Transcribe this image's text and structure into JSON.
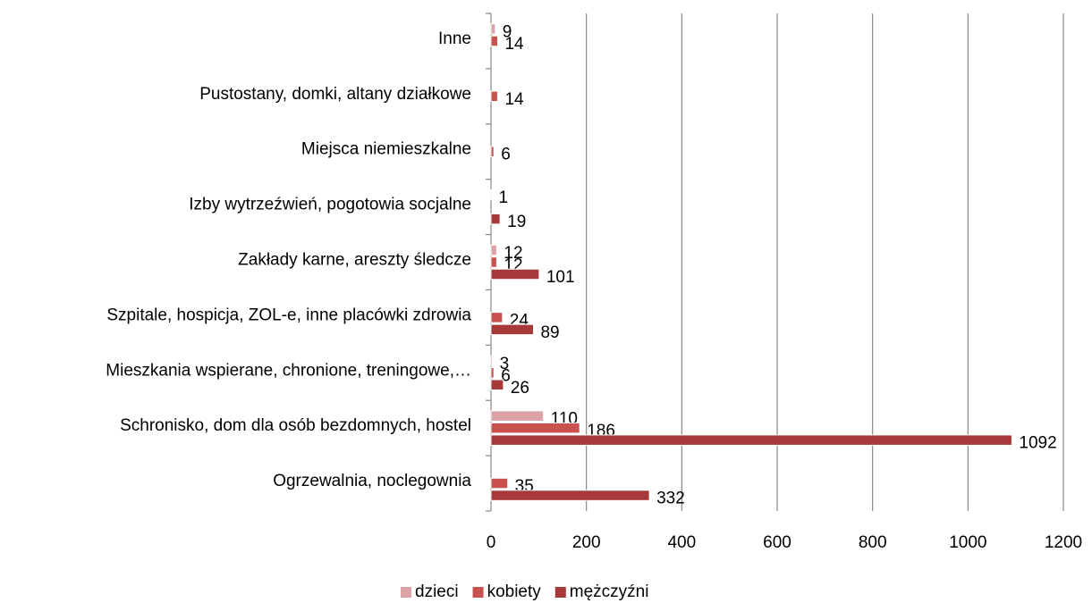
{
  "chart_data": {
    "type": "bar",
    "orientation": "horizontal",
    "categories": [
      "Ogrzewalnia, noclegownia",
      "Schronisko, dom dla osób bezdomnych, hostel",
      "Mieszkania wspierane, chronione, treningowe,…",
      "Szpitale, hospicja, ZOL-e, inne placówki zdrowia",
      "Zakłady karne, areszty śledcze",
      "Izby wytrzeźwień, pogotowia socjalne",
      "Miejsca niemieszkalne",
      "Pustostany, domki, altany działkowe",
      "Inne"
    ],
    "series": [
      {
        "name": "dzieci",
        "color": "#dba3a6",
        "values": [
          null,
          110,
          3,
          null,
          12,
          1,
          null,
          null,
          9
        ]
      },
      {
        "name": "kobiety",
        "color": "#c9524f",
        "values": [
          35,
          186,
          6,
          24,
          12,
          null,
          6,
          14,
          14
        ]
      },
      {
        "name": "mężczyźni",
        "color": "#a8393a",
        "values": [
          332,
          1092,
          26,
          89,
          101,
          19,
          null,
          null,
          null
        ]
      }
    ],
    "xlim": [
      0,
      1200
    ],
    "xticks": [
      0,
      200,
      400,
      600,
      800,
      1000,
      1200
    ],
    "grid": true,
    "legend": "bottom"
  }
}
